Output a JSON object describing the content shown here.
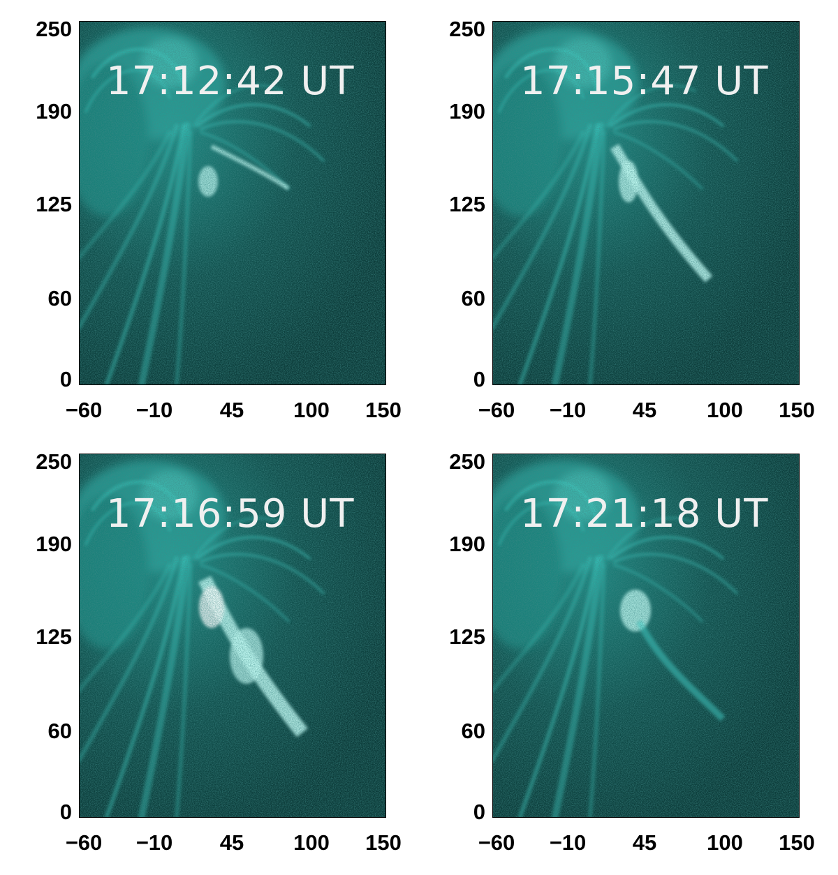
{
  "panels": [
    {
      "timestamp": "17:12:42 UT"
    },
    {
      "timestamp": "17:15:47 UT"
    },
    {
      "timestamp": "17:16:59 UT"
    },
    {
      "timestamp": "17:21:18 UT"
    }
  ],
  "axes": {
    "x_ticks": [
      "−60",
      "−10",
      "45",
      "100",
      "150"
    ],
    "y_ticks": [
      "250",
      "190",
      "125",
      "60",
      "0"
    ]
  },
  "colors": {
    "background": "#0b3a38",
    "plasma": "#3fd6cc",
    "bright": "#c8fff8",
    "text": "#f0f0f0"
  }
}
